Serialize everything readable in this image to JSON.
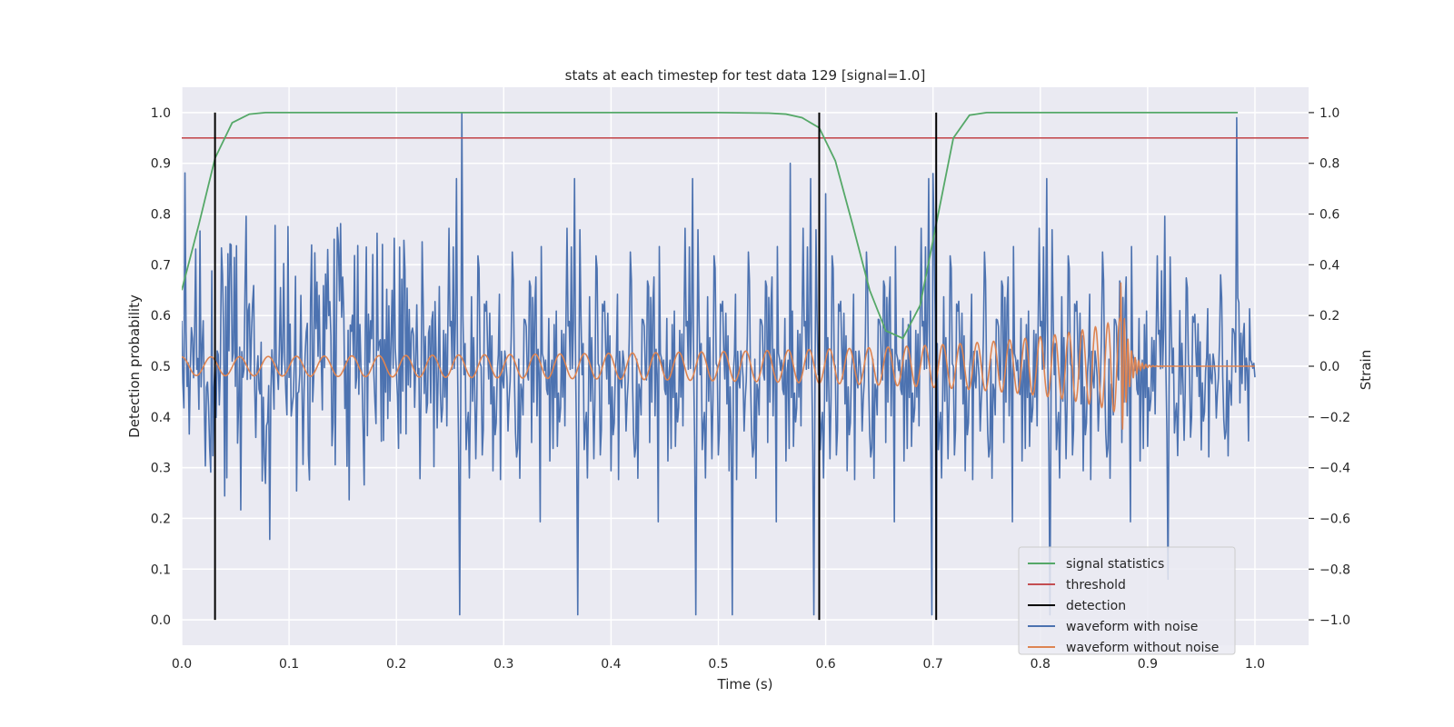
{
  "chart_data": {
    "type": "line",
    "title": "stats at each timestep for test data 129 [signal=1.0]",
    "xlabel": "Time (s)",
    "ylabel_left": "Detection probability",
    "ylabel_right": "Strain",
    "xlim": [
      0.0,
      1.05
    ],
    "ylim_left": [
      -0.05,
      1.05
    ],
    "ylim_right": [
      -1.1,
      1.1
    ],
    "x_ticks": [
      "0.0",
      "0.1",
      "0.2",
      "0.3",
      "0.4",
      "0.5",
      "0.6",
      "0.7",
      "0.8",
      "0.9",
      "1.0"
    ],
    "x_tick_values": [
      0.0,
      0.1,
      0.2,
      0.3,
      0.4,
      0.5,
      0.6,
      0.7,
      0.8,
      0.9,
      1.0
    ],
    "y_left_ticks": [
      "0.0",
      "0.1",
      "0.2",
      "0.3",
      "0.4",
      "0.5",
      "0.6",
      "0.7",
      "0.8",
      "0.9",
      "1.0"
    ],
    "y_left_tick_values": [
      0.0,
      0.1,
      0.2,
      0.3,
      0.4,
      0.5,
      0.6,
      0.7,
      0.8,
      0.9,
      1.0
    ],
    "y_right_ticks": [
      "−1.0",
      "−0.8",
      "−0.6",
      "−0.4",
      "−0.2",
      "0.0",
      "0.2",
      "0.4",
      "0.6",
      "0.8",
      "1.0"
    ],
    "y_right_tick_values": [
      -1.0,
      -0.8,
      -0.6,
      -0.4,
      -0.2,
      0.0,
      0.2,
      0.4,
      0.6,
      0.8,
      1.0
    ],
    "grid": true,
    "legend_position": "lower-right",
    "series": [
      {
        "name": "signal statistics",
        "axis": "left",
        "color": "#55a868",
        "x": [
          0.0,
          0.016,
          0.031,
          0.047,
          0.063,
          0.078,
          0.094,
          0.2,
          0.3,
          0.4,
          0.5,
          0.547,
          0.563,
          0.578,
          0.594,
          0.609,
          0.625,
          0.641,
          0.656,
          0.672,
          0.688,
          0.703,
          0.719,
          0.734,
          0.75,
          0.8,
          0.9,
          0.984
        ],
        "y": [
          0.65,
          0.78,
          0.91,
          0.98,
          0.997,
          1.0,
          1.0,
          1.0,
          1.0,
          1.0,
          1.0,
          0.999,
          0.997,
          0.99,
          0.97,
          0.905,
          0.78,
          0.65,
          0.57,
          0.555,
          0.62,
          0.78,
          0.95,
          0.995,
          1.0,
          1.0,
          1.0,
          1.0
        ]
      },
      {
        "name": "threshold",
        "axis": "left",
        "color": "#c44e52",
        "x": [
          0.0,
          1.05
        ],
        "y": [
          0.95,
          0.95
        ]
      },
      {
        "name": "detection",
        "axis": "left",
        "color": "#000000",
        "x": [
          0.031,
          0.594,
          0.703
        ],
        "y_range": [
          0.0,
          1.0
        ]
      },
      {
        "name": "waveform with noise",
        "axis": "right",
        "color": "#4c72b0",
        "x_range": [
          0.0,
          1.0
        ]
      },
      {
        "name": "waveform without noise",
        "axis": "right",
        "color": "#dd8452",
        "x_range": [
          0.0,
          1.0
        ]
      }
    ]
  }
}
